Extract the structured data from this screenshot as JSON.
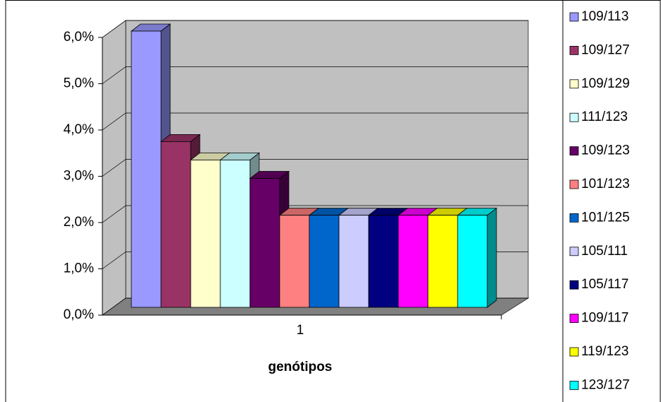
{
  "chart_data": {
    "type": "bar3d",
    "categories": [
      "1"
    ],
    "xlabel": "genótipos",
    "series": [
      {
        "name": "109/113",
        "color": "#9999ff",
        "values": [
          6.0
        ]
      },
      {
        "name": "109/127",
        "color": "#993366",
        "values": [
          3.6
        ]
      },
      {
        "name": "109/129",
        "color": "#ffffcc",
        "values": [
          3.2
        ]
      },
      {
        "name": "111/123",
        "color": "#ccffff",
        "values": [
          3.2
        ]
      },
      {
        "name": "109/123",
        "color": "#660066",
        "values": [
          2.8
        ]
      },
      {
        "name": "101/123",
        "color": "#ff8080",
        "values": [
          2.0
        ]
      },
      {
        "name": "101/125",
        "color": "#0066cc",
        "values": [
          2.0
        ]
      },
      {
        "name": "105/111",
        "color": "#ccccff",
        "values": [
          2.0
        ]
      },
      {
        "name": "105/117",
        "color": "#000080",
        "values": [
          2.0
        ]
      },
      {
        "name": "109/117",
        "color": "#ff00ff",
        "values": [
          2.0
        ]
      },
      {
        "name": "119/123",
        "color": "#ffff00",
        "values": [
          2.0
        ]
      },
      {
        "name": "123/127",
        "color": "#00ffff",
        "values": [
          2.0
        ]
      }
    ],
    "ylim": [
      0,
      6
    ],
    "yticks": [
      {
        "value": 0,
        "label": "0,0%"
      },
      {
        "value": 1,
        "label": "1,0%"
      },
      {
        "value": 2,
        "label": "2,0%"
      },
      {
        "value": 3,
        "label": "3,0%"
      },
      {
        "value": 4,
        "label": "4,0%"
      },
      {
        "value": 5,
        "label": "5,0%"
      },
      {
        "value": 6,
        "label": "6,0%"
      }
    ],
    "grid": true,
    "legend": "right"
  }
}
